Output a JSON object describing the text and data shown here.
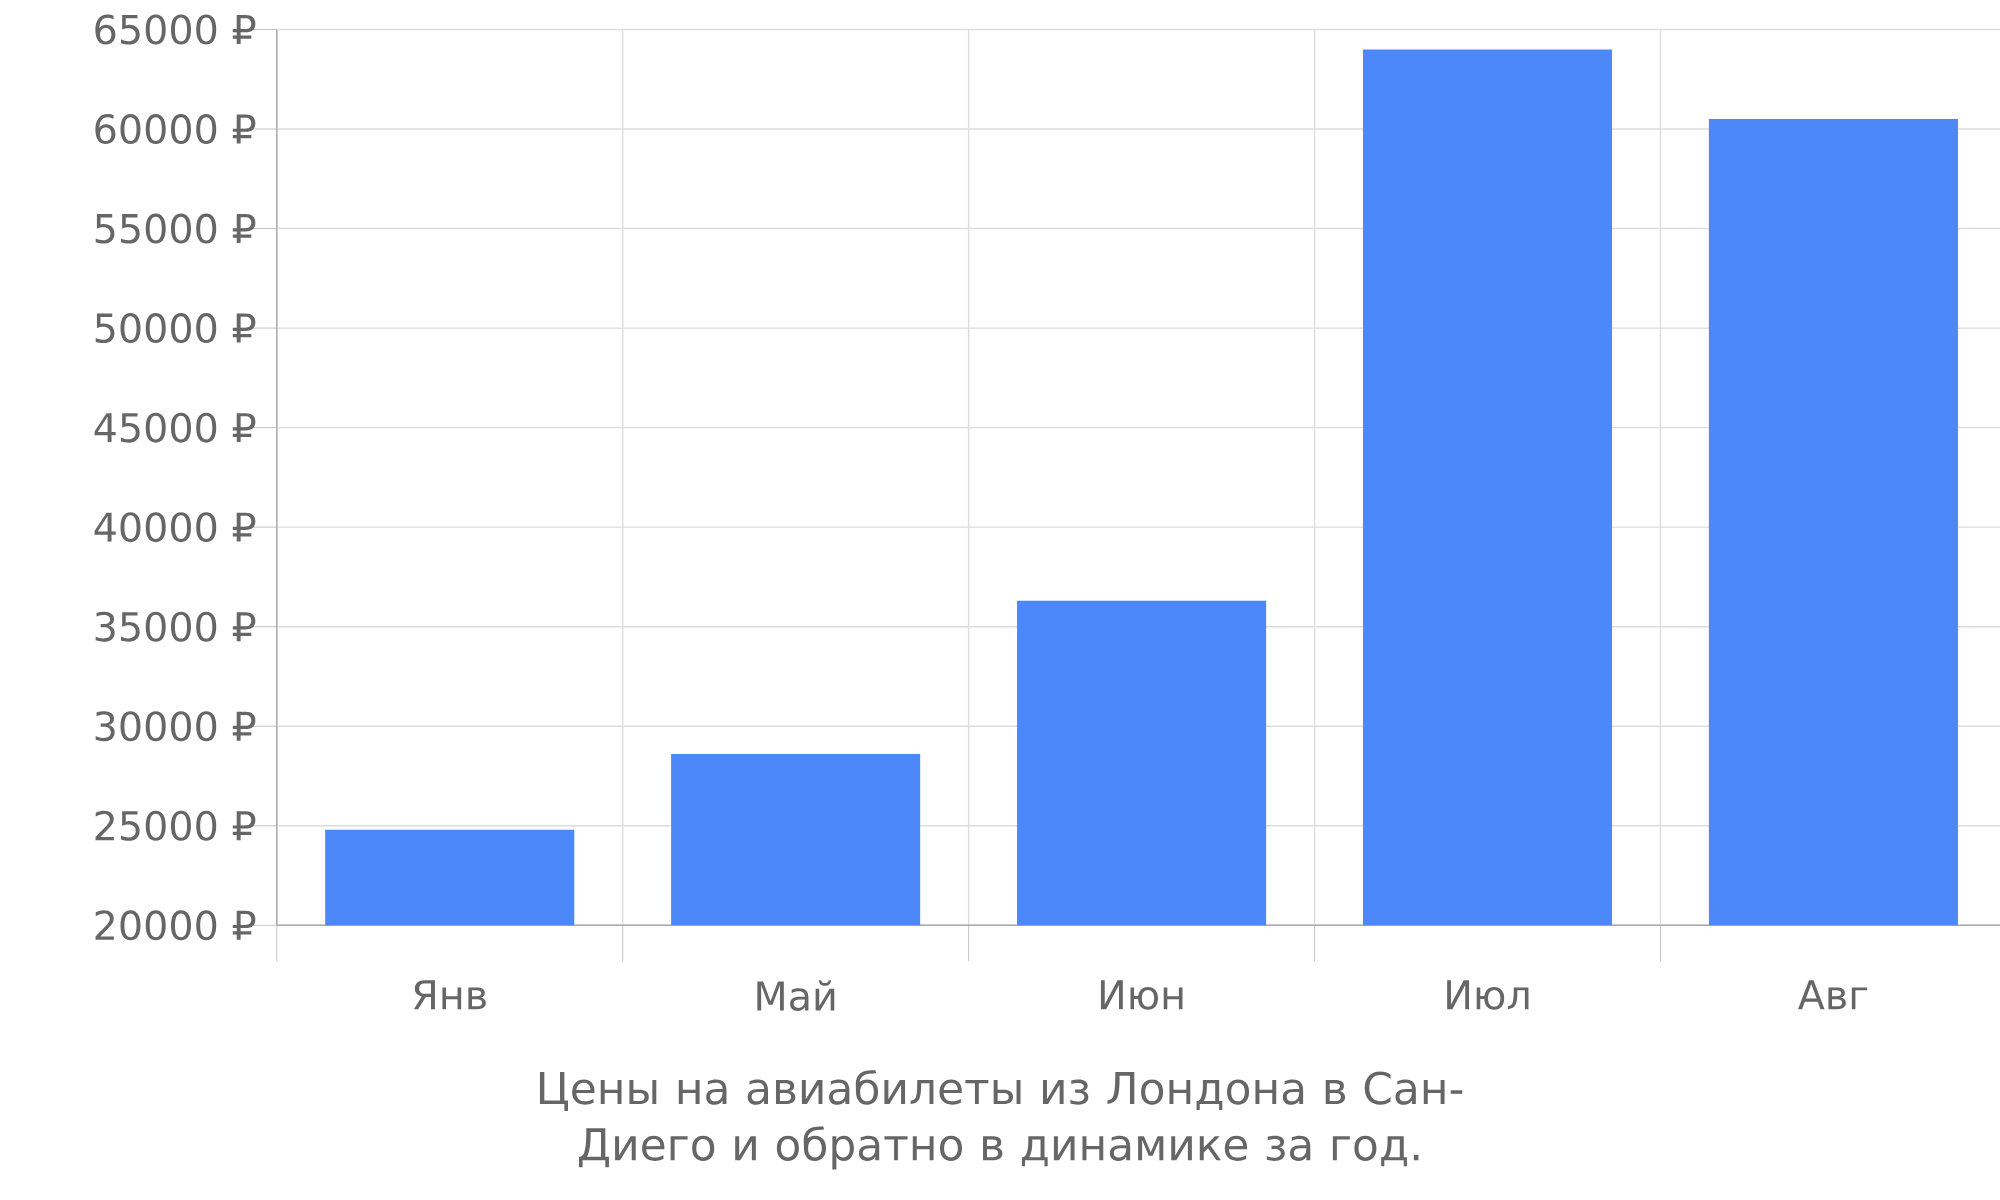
{
  "chart_data": {
    "type": "bar",
    "title": "Цены на авиабилеты из Лондона в Сан-Диего и обратно в динамике за год.",
    "categories": [
      "Янв",
      "Май",
      "Июн",
      "Июл",
      "Авг"
    ],
    "values": [
      24800,
      28600,
      36300,
      64000,
      60500
    ],
    "color": "#4d88f9",
    "ylim": [
      20000,
      65000
    ],
    "yticks": [
      {
        "value": 20000,
        "label": "20000 ₽"
      },
      {
        "value": 25000,
        "label": "25000 ₽"
      },
      {
        "value": 30000,
        "label": "30000 ₽"
      },
      {
        "value": 35000,
        "label": "35000 ₽"
      },
      {
        "value": 40000,
        "label": "40000 ₽"
      },
      {
        "value": 45000,
        "label": "45000 ₽"
      },
      {
        "value": 50000,
        "label": "50000 ₽"
      },
      {
        "value": 55000,
        "label": "55000 ₽"
      },
      {
        "value": 60000,
        "label": "60000 ₽"
      },
      {
        "value": 65000,
        "label": "65000 ₽"
      }
    ],
    "grid": true
  }
}
